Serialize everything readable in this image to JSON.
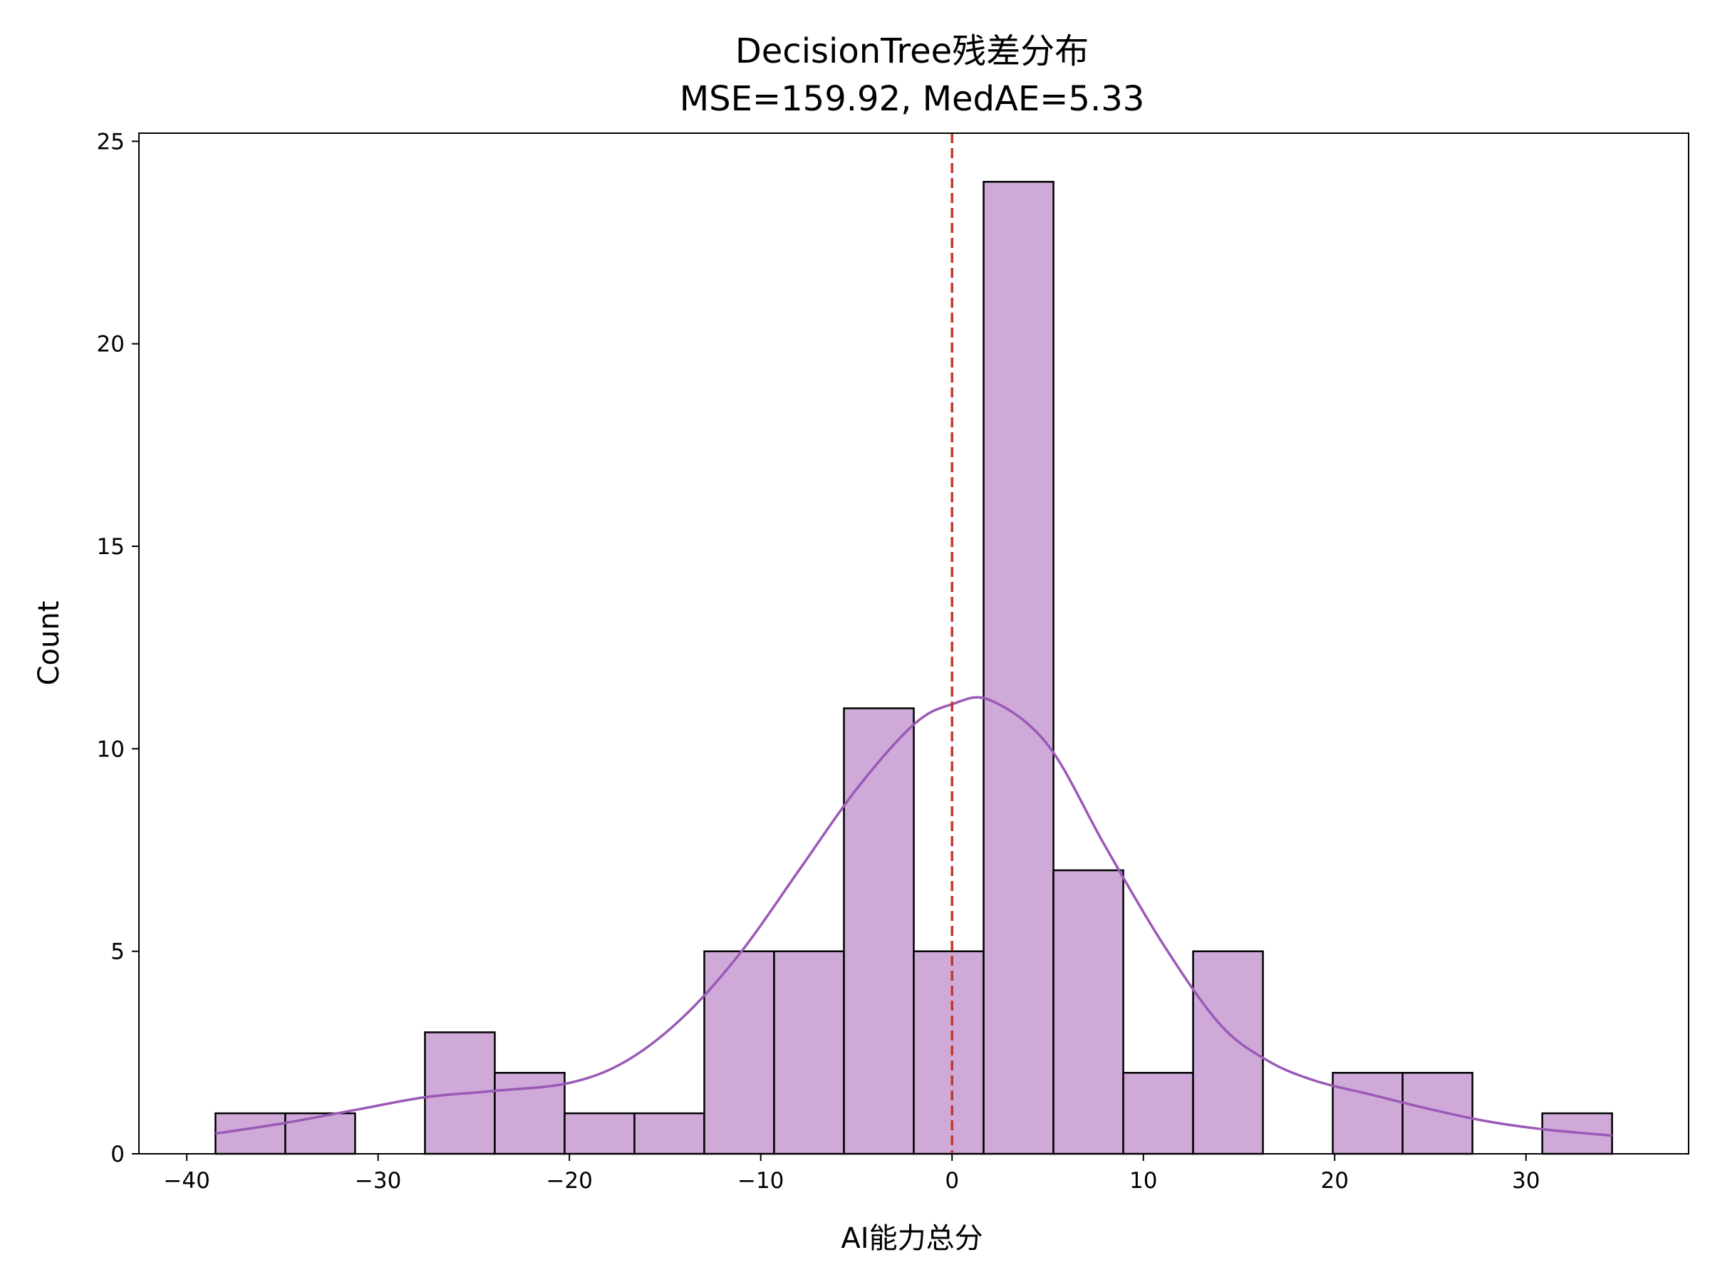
{
  "chart_data": {
    "type": "histogram",
    "title": "DecisionTree残差分布",
    "subtitle": "MSE=159.92, MedAE=5.33",
    "xlabel": "AI能力总分",
    "ylabel": "Count",
    "xlim": [
      -42.5,
      38.5
    ],
    "ylim": [
      0,
      25.2
    ],
    "x_ticks": [
      -40,
      -30,
      -20,
      -10,
      0,
      10,
      20,
      30
    ],
    "x_tick_labels": [
      "−40",
      "−30",
      "−20",
      "−10",
      "0",
      "10",
      "20",
      "30"
    ],
    "y_ticks": [
      0,
      5,
      10,
      15,
      20,
      25
    ],
    "y_tick_labels": [
      "0",
      "5",
      "10",
      "15",
      "20",
      "25"
    ],
    "bin_edges": [
      -38.5,
      -34.85,
      -31.2,
      -27.55,
      -23.9,
      -20.25,
      -16.6,
      -12.95,
      -9.3,
      -5.65,
      -2.0,
      1.65,
      5.3,
      8.95,
      12.6,
      16.25,
      19.9,
      23.55,
      27.2,
      30.85,
      34.5
    ],
    "counts": [
      1,
      1,
      0,
      3,
      2,
      1,
      1,
      5,
      5,
      11,
      5,
      24,
      7,
      2,
      5,
      0,
      2,
      2,
      0,
      1
    ],
    "kde": {
      "x": [
        -38.5,
        -35,
        -31,
        -27.5,
        -24,
        -20,
        -17,
        -14,
        -11,
        -8,
        -5,
        -2,
        0,
        2,
        5,
        8,
        11,
        14,
        16.5,
        19,
        22,
        25,
        28,
        31,
        34.5
      ],
      "y": [
        0.5,
        0.75,
        1.1,
        1.4,
        1.55,
        1.75,
        2.3,
        3.4,
        5.0,
        7.0,
        9.0,
        10.6,
        11.1,
        11.2,
        10.1,
        7.6,
        5.2,
        3.2,
        2.3,
        1.8,
        1.45,
        1.1,
        0.8,
        0.6,
        0.45
      ]
    },
    "reference_line": {
      "x": 0
    },
    "colors": {
      "bar_fill": "#cfaad9",
      "bar_edge": "#000000",
      "kde_line": "#9b59b6",
      "reference_line": "#c0392b"
    },
    "grid": false
  }
}
